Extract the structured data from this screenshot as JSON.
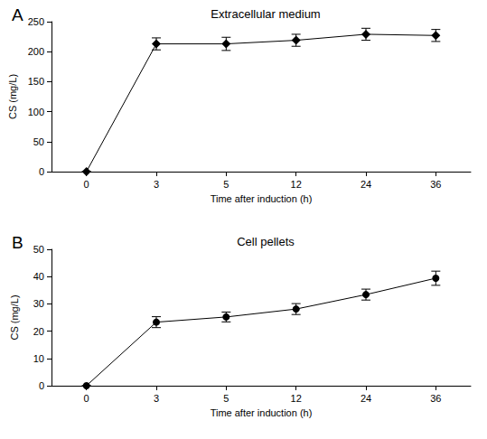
{
  "chart_data": [
    {
      "panel": "A",
      "type": "line",
      "title": "Extracellular medium",
      "x_label": "Time after induction (h)",
      "y_label": "CS (mg/L)",
      "categories": [
        "0",
        "3",
        "5",
        "12",
        "24",
        "36"
      ],
      "values": [
        0,
        213,
        213,
        219,
        229,
        227
      ],
      "errors": [
        0,
        10,
        11,
        10,
        10,
        10
      ],
      "ylim": [
        0,
        250
      ],
      "yticks": [
        0,
        50,
        100,
        150,
        200,
        250
      ],
      "color": "#000000",
      "marker": "diamond",
      "grid": false
    },
    {
      "panel": "B",
      "type": "line",
      "title": "Cell pellets",
      "x_label": "Time after induction (h)",
      "y_label": "CS (mg/L)",
      "categories": [
        "0",
        "3",
        "5",
        "12",
        "24",
        "36"
      ],
      "values": [
        0,
        23.3,
        25.2,
        28.1,
        33.4,
        39.4
      ],
      "errors": [
        0,
        2,
        1.8,
        2,
        2,
        2.6
      ],
      "ylim": [
        0,
        50
      ],
      "yticks": [
        0,
        10,
        20,
        30,
        40,
        50
      ],
      "color": "#000000",
      "marker": "circle",
      "grid": false
    }
  ]
}
